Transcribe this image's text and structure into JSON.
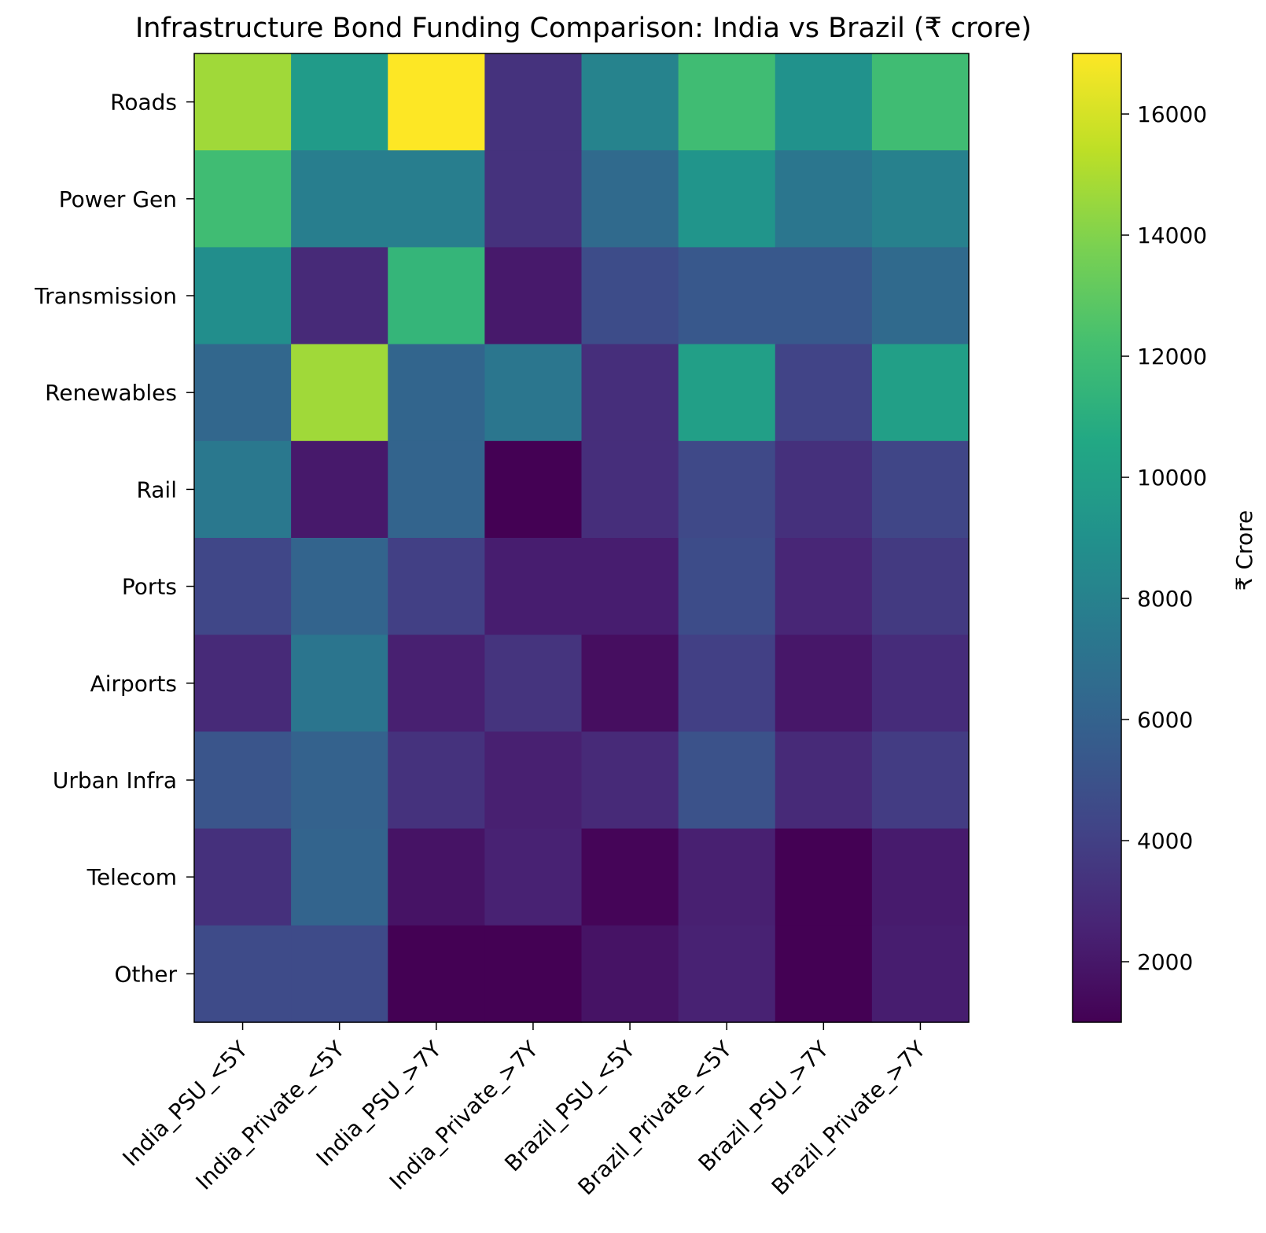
{
  "chart_data": {
    "type": "heatmap",
    "title": "Infrastructure Bond Funding Comparison: India vs Brazil (₹ crore)",
    "rows": [
      "Roads",
      "Power Gen",
      "Transmission",
      "Renewables",
      "Rail",
      "Ports",
      "Airports",
      "Urban Infra",
      "Telecom",
      "Other"
    ],
    "columns": [
      "India_PSU_<5Y",
      "India_Private_<5Y",
      "India_PSU_>7Y",
      "India_Private_>7Y",
      "Brazil_PSU_<5Y",
      "Brazil_Private_<5Y",
      "Brazil_PSU_>7Y",
      "Brazil_Private_>7Y"
    ],
    "values": [
      [
        14700,
        9700,
        17000,
        3300,
        8100,
        12000,
        9100,
        12000
      ],
      [
        12000,
        7800,
        7800,
        3300,
        6500,
        9300,
        7300,
        8000
      ],
      [
        8800,
        2900,
        11500,
        2100,
        4700,
        5400,
        5400,
        6500
      ],
      [
        6300,
        14700,
        6200,
        7300,
        3100,
        10000,
        4200,
        10000
      ],
      [
        7400,
        2100,
        6100,
        1000,
        3100,
        4500,
        3200,
        4300
      ],
      [
        4400,
        6100,
        4000,
        2300,
        2300,
        4700,
        2700,
        3700
      ],
      [
        2900,
        7200,
        2400,
        3400,
        1600,
        4000,
        2000,
        3000
      ],
      [
        5200,
        6000,
        3300,
        2400,
        2900,
        5000,
        2900,
        3800
      ],
      [
        3200,
        6100,
        1800,
        2500,
        1200,
        2400,
        1000,
        2200
      ],
      [
        4600,
        4600,
        1000,
        1000,
        1800,
        2500,
        1000,
        2300
      ]
    ],
    "colorbar": {
      "label": "₹ Crore",
      "ticks": [
        2000,
        4000,
        6000,
        8000,
        10000,
        12000,
        14000,
        16000
      ],
      "tick_labels": [
        "2000",
        "4000",
        "6000",
        "8000",
        "10000",
        "12000",
        "14000",
        "16000"
      ],
      "vmin": 1000,
      "vmax": 17000
    },
    "colormap": "viridis"
  }
}
